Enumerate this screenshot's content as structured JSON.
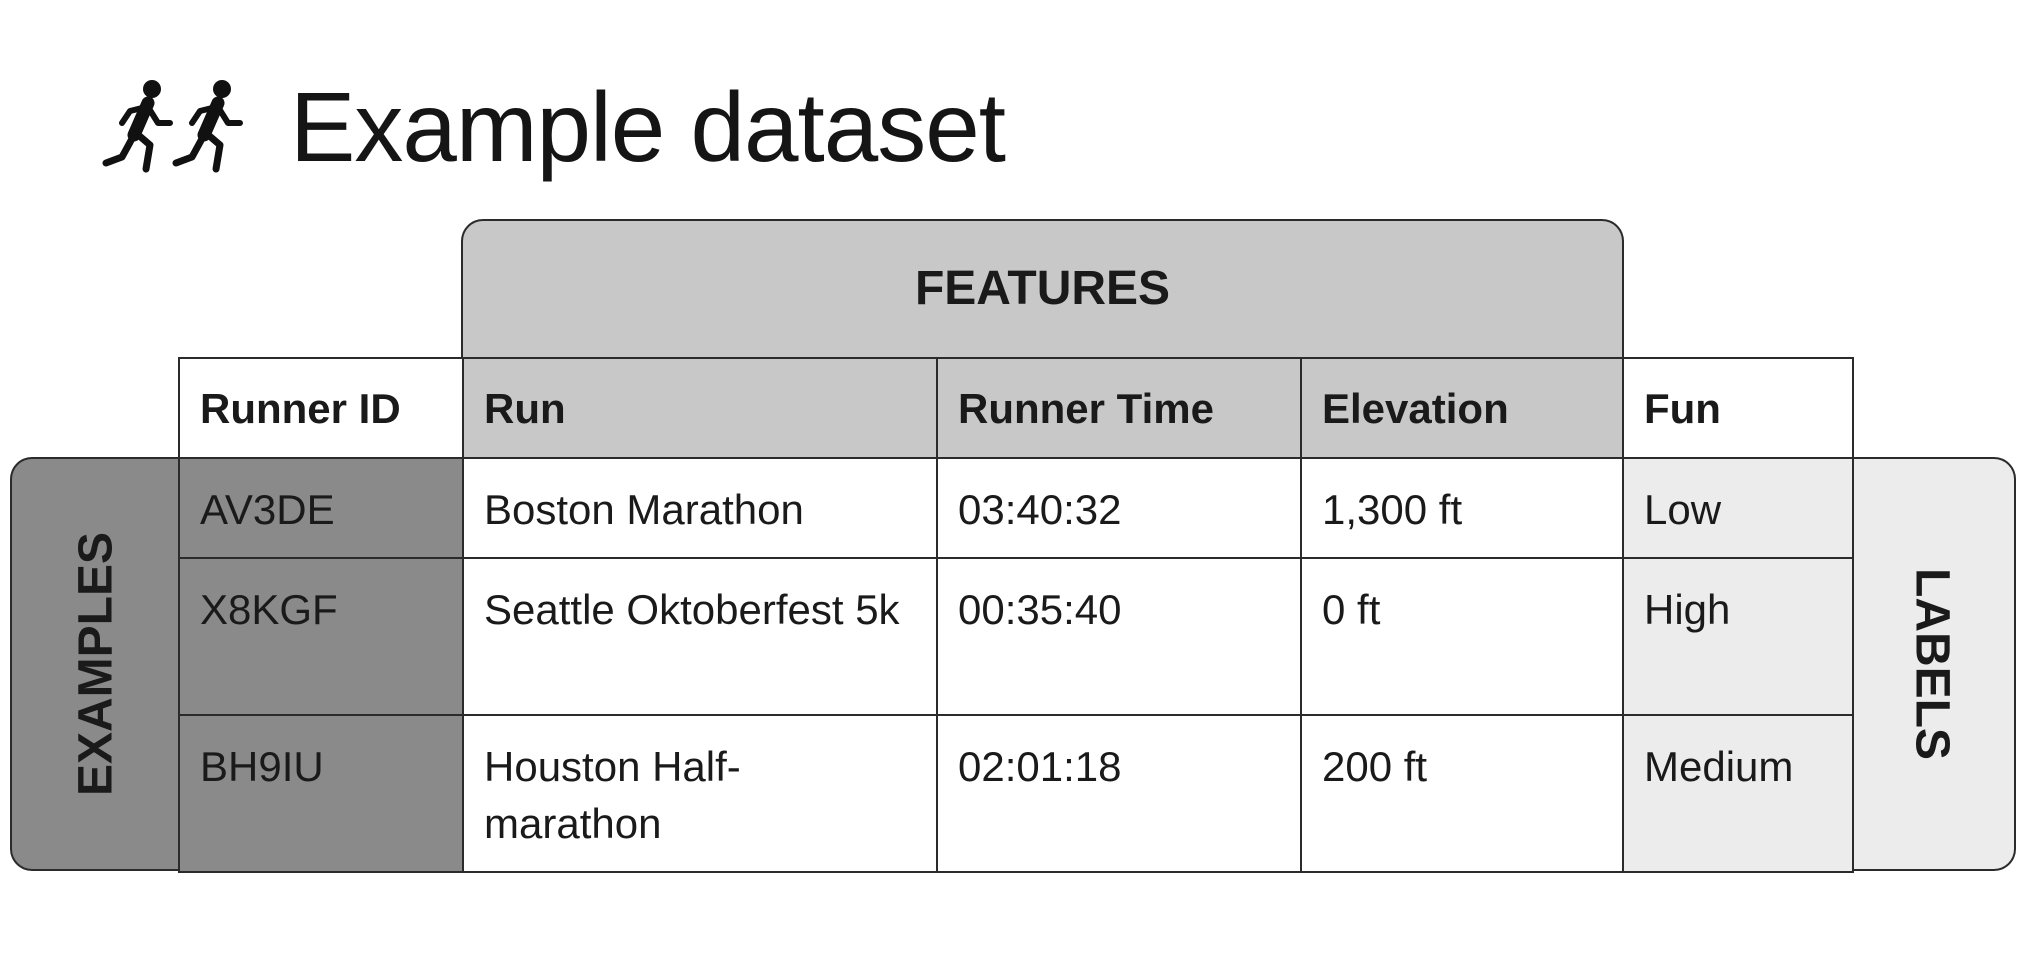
{
  "title": "Example dataset",
  "icon": "two-runners-icon",
  "bands": {
    "features": "FEATURES",
    "examples": "EXAMPLES",
    "labels": "LABELS"
  },
  "columns": [
    "Runner ID",
    "Run",
    "Runner Time",
    "Elevation",
    "Fun"
  ],
  "rows": [
    {
      "id": "AV3DE",
      "run": "Boston Marathon",
      "time": "03:40:32",
      "elevation": "1,300 ft",
      "fun": "Low"
    },
    {
      "id": "X8KGF",
      "run": "Seattle Oktoberfest 5k",
      "time": "00:35:40",
      "elevation": "0 ft",
      "fun": "High"
    },
    {
      "id": "BH9IU",
      "run": "Houston Half-marathon",
      "time": "02:01:18",
      "elevation": "200 ft",
      "fun": "Medium"
    }
  ],
  "colors": {
    "features": "#c8c8c8",
    "examples": "#8a8a8a",
    "labels": "#ececec",
    "border": "#2b2b2b"
  }
}
